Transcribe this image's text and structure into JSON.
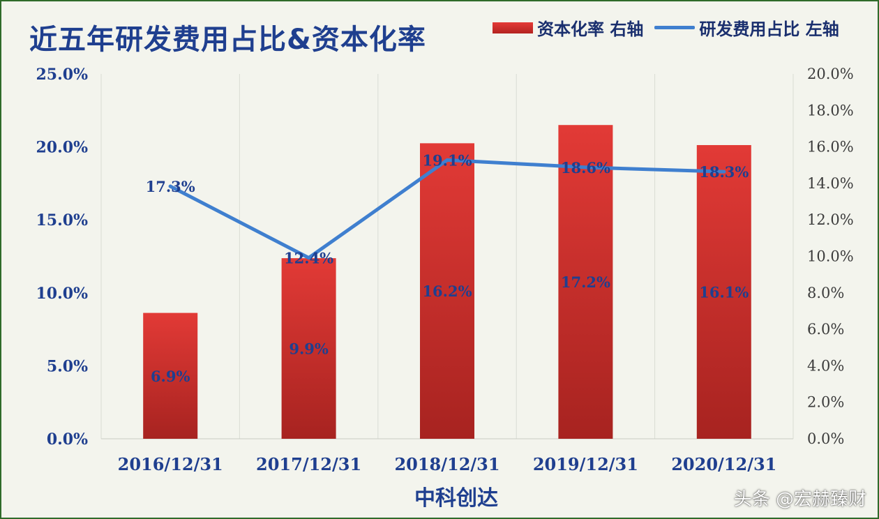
{
  "chart_data": {
    "type": "bar",
    "title": "近五年研发费用占比&资本化率",
    "xlabel": "中科创达",
    "categories": [
      "2016/12/31",
      "2017/12/31",
      "2018/12/31",
      "2019/12/31",
      "2020/12/31"
    ],
    "series": [
      {
        "name": "资本化率 右轴",
        "type": "bar",
        "axis": "right",
        "color": "#d22f2c",
        "values": [
          6.9,
          9.9,
          16.2,
          17.2,
          16.1
        ],
        "labels": [
          "6.9%",
          "9.9%",
          "16.2%",
          "17.2%",
          "16.1%"
        ]
      },
      {
        "name": "研发费用占比 左轴",
        "type": "line",
        "axis": "left",
        "color": "#3f7fcf",
        "values": [
          17.3,
          12.4,
          19.1,
          18.6,
          18.3
        ],
        "labels": [
          "17.3%",
          "12.4%",
          "19.1%",
          "18.6%",
          "18.3%"
        ]
      }
    ],
    "left_axis": {
      "ylim": [
        0,
        25
      ],
      "ticks": [
        "0.0%",
        "5.0%",
        "10.0%",
        "15.0%",
        "20.0%",
        "25.0%"
      ]
    },
    "right_axis": {
      "ylim": [
        0,
        20
      ],
      "ticks": [
        "0.0%",
        "2.0%",
        "4.0%",
        "6.0%",
        "8.0%",
        "10.0%",
        "12.0%",
        "14.0%",
        "16.0%",
        "18.0%",
        "20.0%"
      ]
    },
    "grid": "vertical",
    "legend": "top-right"
  },
  "watermark": "头条 @宏赫臻财"
}
